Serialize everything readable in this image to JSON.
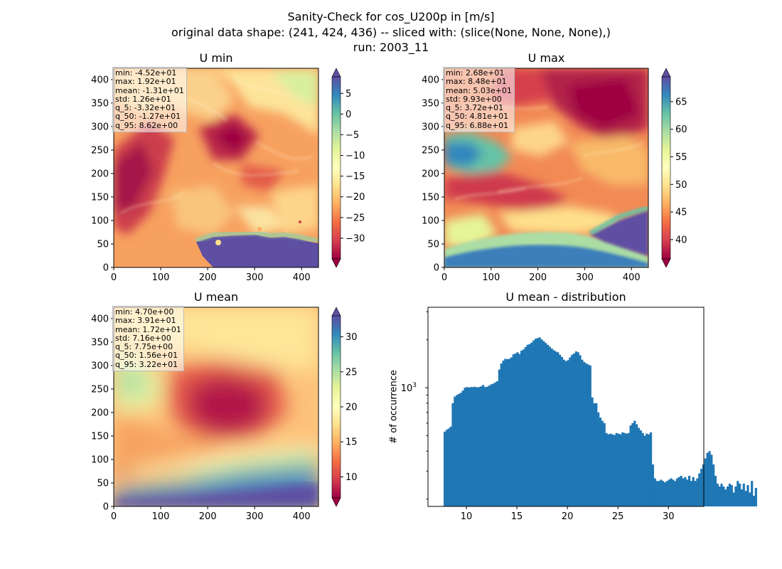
{
  "figure": {
    "title_lines": [
      "Sanity-Check for cos_U200p in [m/s]",
      "original data shape: (241, 424, 436) -- sliced with: (slice(None, None, None),)",
      "run: 2003_11"
    ]
  },
  "chart_data": [
    {
      "type": "heatmap",
      "title": "U min",
      "colormap": "Spectral",
      "xlim": [
        0,
        436
      ],
      "ylim": [
        0,
        424
      ],
      "xticks": [
        0,
        100,
        200,
        300,
        400
      ],
      "yticks": [
        0,
        50,
        100,
        150,
        200,
        250,
        300,
        350,
        400
      ],
      "colorbar": {
        "range": [
          -35,
          9
        ],
        "ticks": [
          5,
          0,
          -5,
          -10,
          -15,
          -20,
          -25,
          -30
        ],
        "tick_labels": [
          "5",
          "0",
          "−5",
          "−10",
          "−15",
          "−20",
          "−25",
          "−30"
        ]
      },
      "stats": [
        "min: -4.52e+01",
        "max: 1.92e+01",
        "mean: -1.31e+01",
        "std: 1.26e+01",
        "q_5: -3.32e+01",
        "q_50: -1.27e+01",
        "q_95: 8.62e+00"
      ]
    },
    {
      "type": "heatmap",
      "title": "U max",
      "colormap": "Spectral",
      "xlim": [
        0,
        436
      ],
      "ylim": [
        0,
        424
      ],
      "xticks": [
        0,
        100,
        200,
        300,
        400
      ],
      "yticks": [
        0,
        50,
        100,
        150,
        200,
        250,
        300,
        350,
        400
      ],
      "colorbar": {
        "range": [
          36.5,
          69.5
        ],
        "ticks": [
          65,
          60,
          55,
          50,
          45,
          40
        ],
        "tick_labels": [
          "65",
          "60",
          "55",
          "50",
          "45",
          "40"
        ]
      },
      "stats": [
        "min: 2.68e+01",
        "max: 8.48e+01",
        "mean: 5.03e+01",
        "std: 9.93e+00",
        "q_5: 3.72e+01",
        "q_50: 4.81e+01",
        "q_95: 6.88e+01"
      ]
    },
    {
      "type": "heatmap",
      "title": "U mean",
      "colormap": "Spectral",
      "xlim": [
        0,
        436
      ],
      "ylim": [
        0,
        424
      ],
      "xticks": [
        0,
        100,
        200,
        300,
        400
      ],
      "yticks": [
        0,
        50,
        100,
        150,
        200,
        250,
        300,
        350,
        400
      ],
      "colorbar": {
        "range": [
          7.0,
          33.0
        ],
        "ticks": [
          30,
          25,
          20,
          15,
          10
        ],
        "tick_labels": [
          "30",
          "25",
          "20",
          "15",
          "10"
        ]
      },
      "stats": [
        "min: 4.70e+00",
        "max: 3.91e+01",
        "mean: 1.72e+01",
        "std: 7.16e+00",
        "q_5: 7.75e+00",
        "q_50: 1.56e+01",
        "q_95: 3.22e+01"
      ]
    },
    {
      "type": "bar",
      "title": "U mean - distribution",
      "ylabel": "# of occurrence",
      "yscale": "log",
      "ylim": [
        180,
        3200
      ],
      "xlim": [
        6.2,
        33.5
      ],
      "xticks": [
        10,
        15,
        20,
        25,
        30
      ],
      "ytick_labels": [
        {
          "value": 1000,
          "label": "10"
        }
      ],
      "color": "#1f77b4",
      "bin_start": 7.75,
      "bin_width": 0.2,
      "values": [
        530,
        545,
        555,
        570,
        800,
        880,
        900,
        915,
        930,
        960,
        1000,
        1010,
        1005,
        1010,
        1010,
        1015,
        1005,
        1010,
        1020,
        1040,
        1010,
        1015,
        1030,
        1050,
        1060,
        1080,
        1100,
        1300,
        1420,
        1480,
        1520,
        1510,
        1520,
        1550,
        1620,
        1640,
        1670,
        1630,
        1710,
        1740,
        1800,
        1860,
        1880,
        1920,
        1980,
        2030,
        2050,
        2070,
        2010,
        1960,
        1910,
        1860,
        1810,
        1760,
        1720,
        1690,
        1670,
        1610,
        1560,
        1500,
        1470,
        1490,
        1550,
        1610,
        1640,
        1690,
        1670,
        1600,
        1500,
        1450,
        1420,
        1400,
        1380,
        870,
        800,
        800,
        700,
        650,
        620,
        600,
        520,
        510,
        515,
        510,
        505,
        520,
        515,
        510,
        525,
        520,
        515,
        520,
        580,
        600,
        620,
        590,
        560,
        540,
        520,
        500,
        515,
        510,
        525,
        330,
        270,
        260,
        260,
        265,
        260,
        255,
        260,
        265,
        270,
        265,
        260,
        270,
        275,
        280,
        270,
        275,
        265,
        280,
        260,
        275,
        260,
        270,
        290,
        310,
        330,
        360,
        390,
        400,
        380,
        330,
        280,
        250,
        240,
        250,
        240,
        230,
        240,
        250,
        245,
        220,
        240,
        260,
        250,
        230,
        250,
        225,
        245,
        220,
        260,
        210,
        235
      ]
    }
  ]
}
